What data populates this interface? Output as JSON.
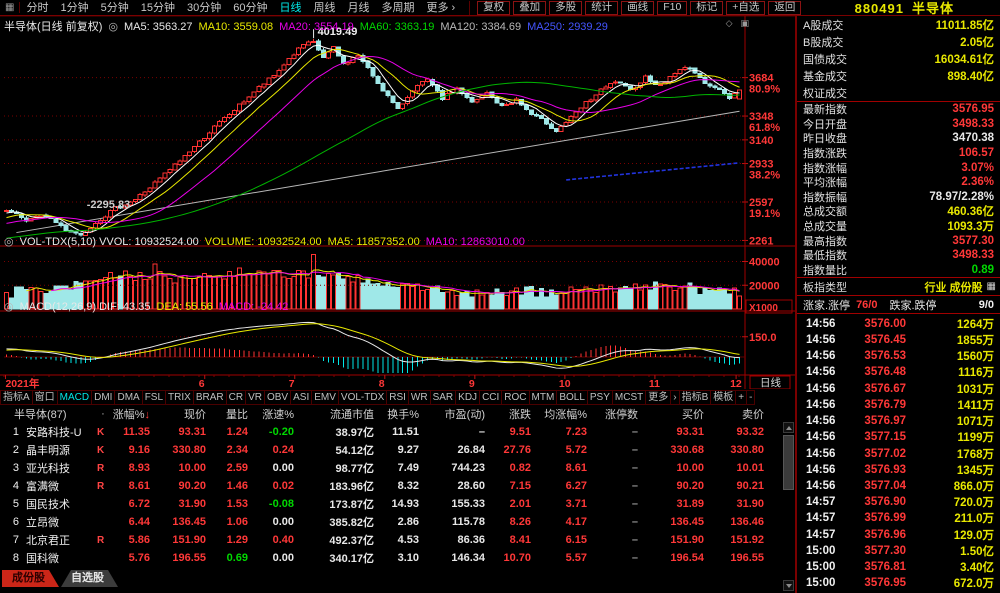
{
  "icons": {
    "layout": "▦",
    "collapse": "◎",
    "diamond": "◇",
    "panel_toggle": "▣",
    "grid": "▦",
    "more_arrow": "›"
  },
  "topbar": {
    "periods": [
      {
        "label": "分时"
      },
      {
        "label": "1分钟"
      },
      {
        "label": "5分钟"
      },
      {
        "label": "15分钟"
      },
      {
        "label": "30分钟"
      },
      {
        "label": "60分钟"
      },
      {
        "label": "日线",
        "active": true
      },
      {
        "label": "周线"
      },
      {
        "label": "月线"
      },
      {
        "label": "多周期"
      },
      {
        "label": "更多 ›"
      }
    ],
    "tools": [
      "复权",
      "叠加",
      "多股",
      "统计",
      "画线",
      "F10",
      "标记",
      "+自选",
      "返回"
    ],
    "code": "880491",
    "name": "半导体"
  },
  "kline_header": {
    "title": "半导体(日线 前复权)",
    "mas": [
      {
        "t": "MA5: 3563.27",
        "c": "w"
      },
      {
        "t": "MA10: 3559.08",
        "c": "y"
      },
      {
        "t": "MA20: 3554.19",
        "c": "m"
      },
      {
        "t": "MA60: 3363.19",
        "c": "g"
      },
      {
        "t": "MA120: 3384.69",
        "c": "gy"
      },
      {
        "t": "MA250: 2939.29",
        "c": "b"
      }
    ]
  },
  "vol_header": [
    {
      "t": "VOL-TDX(5,10) VVOL: 10932524.00",
      "c": "w"
    },
    {
      "t": "VOLUME: 10932524.00",
      "c": "y"
    },
    {
      "t": "MA5: 11857352.00",
      "c": "y"
    },
    {
      "t": "MA10: 12863010.00",
      "c": "m"
    }
  ],
  "macd_header": [
    {
      "t": "MACD(12,26,9) DIF: 43.35",
      "c": "w"
    },
    {
      "t": "DEA: 55.56",
      "c": "y"
    },
    {
      "t": "MACD: -24.42",
      "c": "m"
    }
  ],
  "chart_data": {
    "type": "candlestick+volume+macd",
    "title": "880491 半导体 日线",
    "annotations": {
      "peak": "4019.49",
      "peak_index": 62,
      "low": "-2295.83",
      "low_index": 15,
      "vol_unit": "X1000",
      "macd_level": "150.0",
      "period_box": "日线"
    },
    "price_axis": [
      {
        "label": "3684",
        "pct": "80.9%",
        "price": 3684
      },
      {
        "label": "3348",
        "pct": "61.8%",
        "price": 3348
      },
      {
        "label": "3140",
        "pct": "",
        "price": 3140
      },
      {
        "label": "2933",
        "pct": "38.2%",
        "price": 2933
      },
      {
        "label": "2597",
        "pct": "19.1%",
        "price": 2597
      },
      {
        "label": "2261",
        "pct": "",
        "price": 2261
      }
    ],
    "vol_axis": [
      {
        "label": "40000",
        "v": 40000
      },
      {
        "label": "20000",
        "v": 20000
      }
    ],
    "x_axis": [
      {
        "label": "2021年",
        "f": 0.002
      },
      {
        "label": "6",
        "f": 0.272
      },
      {
        "label": "7",
        "f": 0.394
      },
      {
        "label": "8",
        "f": 0.516
      },
      {
        "label": "9",
        "f": 0.638
      },
      {
        "label": "10",
        "f": 0.76
      },
      {
        "label": "11",
        "f": 0.882
      },
      {
        "label": "12",
        "f": 0.992
      }
    ],
    "n": 149,
    "lead": 120,
    "noise": 34,
    "price_anchors": [
      [
        -120,
        2150
      ],
      [
        -70,
        2060
      ],
      [
        -35,
        2230
      ],
      [
        -10,
        2380
      ],
      [
        0,
        2520
      ],
      [
        4,
        2440
      ],
      [
        8,
        2480
      ],
      [
        12,
        2360
      ],
      [
        15,
        2310
      ],
      [
        18,
        2420
      ],
      [
        22,
        2540
      ],
      [
        26,
        2620
      ],
      [
        30,
        2760
      ],
      [
        34,
        2920
      ],
      [
        38,
        3080
      ],
      [
        42,
        3250
      ],
      [
        46,
        3400
      ],
      [
        50,
        3560
      ],
      [
        54,
        3700
      ],
      [
        57,
        3850
      ],
      [
        60,
        3970
      ],
      [
        62,
        3990
      ],
      [
        64,
        3860
      ],
      [
        66,
        3940
      ],
      [
        68,
        3800
      ],
      [
        71,
        3880
      ],
      [
        74,
        3700
      ],
      [
        77,
        3520
      ],
      [
        79,
        3400
      ],
      [
        82,
        3580
      ],
      [
        85,
        3660
      ],
      [
        88,
        3500
      ],
      [
        91,
        3590
      ],
      [
        94,
        3460
      ],
      [
        97,
        3550
      ],
      [
        100,
        3430
      ],
      [
        103,
        3490
      ],
      [
        106,
        3360
      ],
      [
        109,
        3290
      ],
      [
        111,
        3220
      ],
      [
        114,
        3330
      ],
      [
        117,
        3460
      ],
      [
        120,
        3570
      ],
      [
        123,
        3650
      ],
      [
        126,
        3570
      ],
      [
        129,
        3690
      ],
      [
        132,
        3610
      ],
      [
        135,
        3730
      ],
      [
        138,
        3780
      ],
      [
        140,
        3670
      ],
      [
        143,
        3600
      ],
      [
        146,
        3510
      ],
      [
        148,
        3577
      ]
    ],
    "overrides": {
      "15": {
        "l": 2295.83
      },
      "62": {
        "h": 4019.49
      },
      "148": {
        "o": 3498.33,
        "c": 3576.95,
        "h": 3577.3,
        "l": 3498.33
      }
    },
    "vol_overrides": {
      "30": 38000,
      "62": 46000,
      "148": 10933
    },
    "trendline": [
      [
        2,
        2330
      ],
      [
        148,
        3390
      ]
    ],
    "ma250_segment": [
      [
        113,
        2790
      ],
      [
        148,
        2939
      ]
    ],
    "last": {
      "open": 3498.33,
      "close": 3576.95,
      "high": 3577.3,
      "low": 3498.33,
      "prev_close": 3470.38
    }
  },
  "tabsrow": {
    "left": [
      "指标A",
      "窗口"
    ],
    "indicators": [
      {
        "label": "MACD",
        "active": true
      },
      {
        "label": "DMI"
      },
      {
        "label": "DMA"
      },
      {
        "label": "FSL"
      },
      {
        "label": "TRIX"
      },
      {
        "label": "BRAR"
      },
      {
        "label": "CR"
      },
      {
        "label": "VR"
      },
      {
        "label": "OBV"
      },
      {
        "label": "ASI"
      },
      {
        "label": "EMV"
      },
      {
        "label": "VOL-TDX"
      },
      {
        "label": "RSI"
      },
      {
        "label": "WR"
      },
      {
        "label": "SAR"
      },
      {
        "label": "KDJ"
      },
      {
        "label": "CCI"
      },
      {
        "label": "ROC"
      },
      {
        "label": "MTM"
      },
      {
        "label": "BOLL"
      },
      {
        "label": "PSY"
      },
      {
        "label": "MCST"
      },
      {
        "label": "更多"
      },
      {
        "label": "›"
      }
    ],
    "right": [
      "指标B",
      "模板",
      "+",
      "-"
    ]
  },
  "table": {
    "title": "半导体(87)",
    "dot": "·",
    "sort_indicator": "↓",
    "headers": [
      "涨幅%",
      "现价",
      "量比",
      "涨速%",
      "流通市值",
      "换手%",
      "市盈(动)",
      "涨跌",
      "均涨幅%",
      "涨停数",
      "买价",
      "卖价"
    ],
    "rows": [
      {
        "rank": "1",
        "name": "安路科技-U",
        "tag": "K",
        "cells": [
          [
            "11.35",
            "r"
          ],
          [
            "93.31",
            "r"
          ],
          [
            "1.24",
            "r"
          ],
          [
            "-0.20",
            "g"
          ],
          [
            "38.97亿",
            "w"
          ],
          [
            "11.51",
            "w"
          ],
          [
            "–",
            "w"
          ],
          [
            "9.51",
            "r"
          ],
          [
            "7.23",
            "r"
          ],
          [
            "–",
            "d"
          ],
          [
            "93.31",
            "r"
          ],
          [
            "93.32",
            "r"
          ]
        ]
      },
      {
        "rank": "2",
        "name": "晶丰明源",
        "tag": "K",
        "cells": [
          [
            "9.16",
            "r"
          ],
          [
            "330.80",
            "r"
          ],
          [
            "2.34",
            "r"
          ],
          [
            "0.24",
            "r"
          ],
          [
            "54.12亿",
            "w"
          ],
          [
            "9.27",
            "w"
          ],
          [
            "26.84",
            "w"
          ],
          [
            "27.76",
            "r"
          ],
          [
            "5.72",
            "r"
          ],
          [
            "–",
            "d"
          ],
          [
            "330.68",
            "r"
          ],
          [
            "330.80",
            "r"
          ]
        ]
      },
      {
        "rank": "3",
        "name": "亚光科技",
        "tag": "R",
        "cells": [
          [
            "8.93",
            "r"
          ],
          [
            "10.00",
            "r"
          ],
          [
            "2.59",
            "r"
          ],
          [
            "0.00",
            "w"
          ],
          [
            "98.77亿",
            "w"
          ],
          [
            "7.49",
            "w"
          ],
          [
            "744.23",
            "w"
          ],
          [
            "0.82",
            "r"
          ],
          [
            "8.61",
            "r"
          ],
          [
            "–",
            "d"
          ],
          [
            "10.00",
            "r"
          ],
          [
            "10.01",
            "r"
          ]
        ]
      },
      {
        "rank": "4",
        "name": "富满微",
        "tag": "R",
        "cells": [
          [
            "8.61",
            "r"
          ],
          [
            "90.20",
            "r"
          ],
          [
            "1.46",
            "r"
          ],
          [
            "0.02",
            "r"
          ],
          [
            "183.96亿",
            "w"
          ],
          [
            "8.32",
            "w"
          ],
          [
            "28.60",
            "w"
          ],
          [
            "7.15",
            "r"
          ],
          [
            "6.27",
            "r"
          ],
          [
            "–",
            "d"
          ],
          [
            "90.20",
            "r"
          ],
          [
            "90.21",
            "r"
          ]
        ]
      },
      {
        "rank": "5",
        "name": "国民技术",
        "tag": "",
        "cells": [
          [
            "6.72",
            "r"
          ],
          [
            "31.90",
            "r"
          ],
          [
            "1.53",
            "r"
          ],
          [
            "-0.08",
            "g"
          ],
          [
            "173.87亿",
            "w"
          ],
          [
            "14.93",
            "w"
          ],
          [
            "155.33",
            "w"
          ],
          [
            "2.01",
            "r"
          ],
          [
            "3.71",
            "r"
          ],
          [
            "–",
            "d"
          ],
          [
            "31.89",
            "r"
          ],
          [
            "31.90",
            "r"
          ]
        ]
      },
      {
        "rank": "6",
        "name": "立昂微",
        "tag": "",
        "cells": [
          [
            "6.44",
            "r"
          ],
          [
            "136.45",
            "r"
          ],
          [
            "1.06",
            "r"
          ],
          [
            "0.00",
            "w"
          ],
          [
            "385.82亿",
            "w"
          ],
          [
            "2.86",
            "w"
          ],
          [
            "115.78",
            "w"
          ],
          [
            "8.26",
            "r"
          ],
          [
            "4.17",
            "r"
          ],
          [
            "–",
            "d"
          ],
          [
            "136.45",
            "r"
          ],
          [
            "136.46",
            "r"
          ]
        ]
      },
      {
        "rank": "7",
        "name": "北京君正",
        "tag": "R",
        "cells": [
          [
            "5.86",
            "r"
          ],
          [
            "151.90",
            "r"
          ],
          [
            "1.29",
            "r"
          ],
          [
            "0.40",
            "r"
          ],
          [
            "492.37亿",
            "w"
          ],
          [
            "4.53",
            "w"
          ],
          [
            "86.36",
            "w"
          ],
          [
            "8.41",
            "r"
          ],
          [
            "6.15",
            "r"
          ],
          [
            "–",
            "d"
          ],
          [
            "151.90",
            "r"
          ],
          [
            "151.92",
            "r"
          ]
        ]
      },
      {
        "rank": "8",
        "name": "国科微",
        "tag": "",
        "cells": [
          [
            "5.76",
            "r"
          ],
          [
            "196.55",
            "r"
          ],
          [
            "0.69",
            "g"
          ],
          [
            "0.00",
            "w"
          ],
          [
            "340.17亿",
            "w"
          ],
          [
            "3.10",
            "w"
          ],
          [
            "146.34",
            "w"
          ],
          [
            "10.70",
            "r"
          ],
          [
            "5.57",
            "r"
          ],
          [
            "–",
            "d"
          ],
          [
            "196.54",
            "r"
          ],
          [
            "196.55",
            "r"
          ]
        ]
      }
    ]
  },
  "bottom_tabs": [
    {
      "label": "成份股",
      "active": true
    },
    {
      "label": "自选股",
      "active": false
    }
  ],
  "panel": {
    "market_rows": [
      {
        "label": "A股成交",
        "value": "11011.85亿",
        "c": "y"
      },
      {
        "label": "B股成交",
        "value": "2.05亿",
        "c": "y"
      },
      {
        "label": "国债成交",
        "value": "16034.61亿",
        "c": "y"
      },
      {
        "label": "基金成交",
        "value": "898.40亿",
        "c": "y"
      },
      {
        "label": "权证成交",
        "value": "",
        "c": "w"
      }
    ],
    "index_rows": [
      {
        "label": "最新指数",
        "value": "3576.95",
        "c": "r"
      },
      {
        "label": "今日开盘",
        "value": "3498.33",
        "c": "r"
      },
      {
        "label": "昨日收盘",
        "value": "3470.38",
        "c": "w"
      },
      {
        "label": "指数涨跌",
        "value": "106.57",
        "c": "r"
      },
      {
        "label": "指数涨幅",
        "value": "3.07%",
        "c": "r"
      },
      {
        "label": "平均涨幅",
        "value": "2.36%",
        "c": "r"
      },
      {
        "label": "指数振幅",
        "value": "78.97/2.28%",
        "c": "w"
      },
      {
        "label": "总成交额",
        "value": "460.36亿",
        "c": "y"
      },
      {
        "label": "总成交量",
        "value": "1093.3万",
        "c": "y"
      },
      {
        "label": "最高指数",
        "value": "3577.30",
        "c": "r"
      },
      {
        "label": "最低指数",
        "value": "3498.33",
        "c": "r"
      },
      {
        "label": "指数量比",
        "value": "0.89",
        "c": "g"
      }
    ],
    "board_type": {
      "label": "板指类型",
      "value": "行业 成份股"
    },
    "updown": {
      "up_label": "涨家.涨停",
      "up_value": "76/0",
      "down_label": "跌家.跌停",
      "down_value": "9/0"
    },
    "ticks": [
      {
        "time": "14:56",
        "price": "3576.00",
        "vol": "1264万"
      },
      {
        "time": "14:56",
        "price": "3576.45",
        "vol": "1855万"
      },
      {
        "time": "14:56",
        "price": "3576.53",
        "vol": "1560万"
      },
      {
        "time": "14:56",
        "price": "3576.48",
        "vol": "1116万"
      },
      {
        "time": "14:56",
        "price": "3576.67",
        "vol": "1031万"
      },
      {
        "time": "14:56",
        "price": "3576.79",
        "vol": "1411万"
      },
      {
        "time": "14:56",
        "price": "3576.97",
        "vol": "1071万"
      },
      {
        "time": "14:56",
        "price": "3577.15",
        "vol": "1199万"
      },
      {
        "time": "14:56",
        "price": "3577.02",
        "vol": "1768万"
      },
      {
        "time": "14:56",
        "price": "3576.93",
        "vol": "1345万"
      },
      {
        "time": "14:56",
        "price": "3577.04",
        "vol": "866.0万"
      },
      {
        "time": "14:57",
        "price": "3576.90",
        "vol": "720.0万"
      },
      {
        "time": "14:57",
        "price": "3576.99",
        "vol": "211.0万"
      },
      {
        "time": "14:57",
        "price": "3576.96",
        "vol": "129.0万"
      },
      {
        "time": "15:00",
        "price": "3577.30",
        "vol": "1.50亿"
      },
      {
        "time": "15:00",
        "price": "3576.81",
        "vol": "3.40亿"
      },
      {
        "time": "15:00",
        "price": "3576.95",
        "vol": "672.0万"
      }
    ]
  }
}
